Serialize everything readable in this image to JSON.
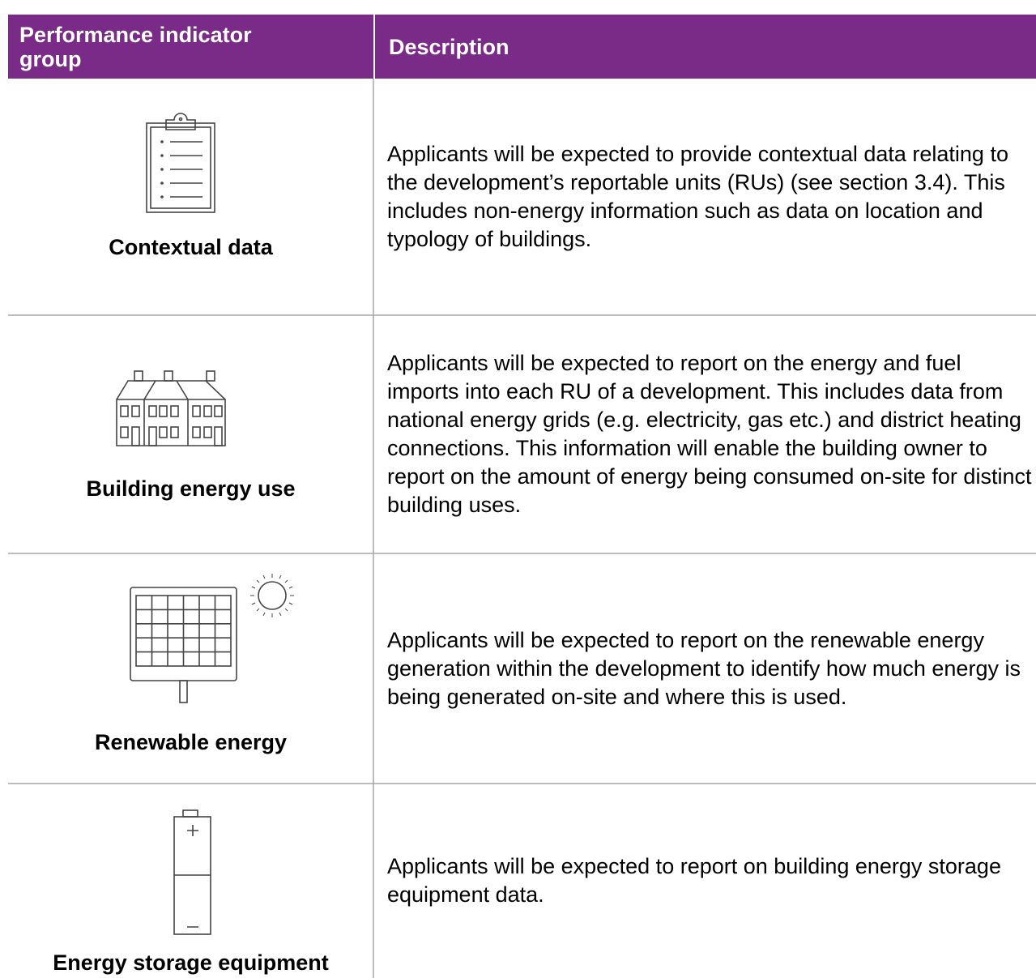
{
  "table": {
    "header": [
      "Performance indicator group",
      "Description"
    ],
    "rows": [
      [
        "Contextual data",
        "Applicants will be expected to provide contextual data relating to the development’s reportable units (RUs) (see section 3.4). This includes non-energy information such as data on location and typology of buildings."
      ],
      [
        "Building energy use",
        "Applicants will be expected to report on the energy and fuel imports into each RU of a development. This includes data from national energy grids (e.g. electricity, gas etc.) and district heating connections. This information will enable the building owner to report on the amount of energy being consumed on-site for distinct building uses."
      ],
      [
        "Renewable energy",
        "Applicants will be expected to report on the renewable energy generation within the development to identify how much energy is being generated on-site and where this is used."
      ],
      [
        "Energy storage equipment",
        "Applicants will be expected to report on building energy storage equipment data."
      ]
    ]
  }
}
